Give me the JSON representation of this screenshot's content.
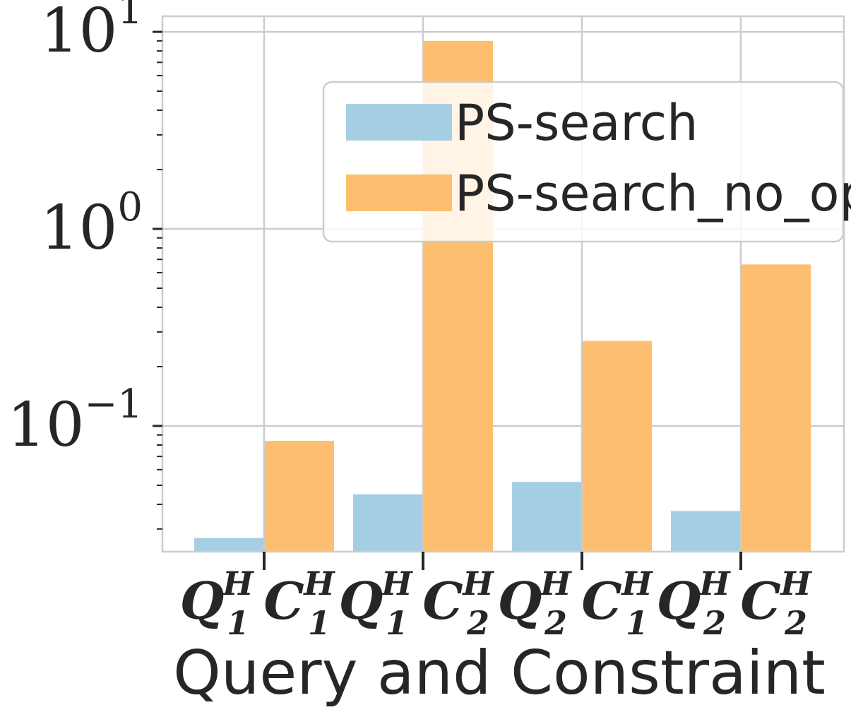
{
  "chart_data": {
    "type": "bar",
    "title": "",
    "xlabel": "Query and Constraint",
    "ylabel": "",
    "yscale": "log",
    "ylim": [
      0.023,
      12
    ],
    "grid": true,
    "legend_placement": "upper right",
    "y_tick_labels": [
      {
        "base": "10",
        "exp": "1",
        "value": 10
      },
      {
        "base": "10",
        "exp": "0",
        "value": 1
      },
      {
        "base": "10",
        "exp": "−1",
        "value": 0.1
      }
    ],
    "categories": [
      {
        "q": "Q",
        "q_sup": "H",
        "q_sub": "1",
        "c": "C",
        "c_sup": "H",
        "c_sub": "1"
      },
      {
        "q": "Q",
        "q_sup": "H",
        "q_sub": "1",
        "c": "C",
        "c_sup": "H",
        "c_sub": "2"
      },
      {
        "q": "Q",
        "q_sup": "H",
        "q_sub": "2",
        "c": "C",
        "c_sup": "H",
        "c_sub": "1"
      },
      {
        "q": "Q",
        "q_sup": "H",
        "q_sub": "2",
        "c": "C",
        "c_sup": "H",
        "c_sub": "2"
      }
    ],
    "series": [
      {
        "name": "PS-search",
        "color": "#a6cee3",
        "values": [
          0.027,
          0.045,
          0.052,
          0.037
        ]
      },
      {
        "name": "PS-search_no_opt",
        "color": "#fdbf6f",
        "values": [
          0.084,
          9.0,
          0.27,
          0.66
        ]
      }
    ]
  }
}
